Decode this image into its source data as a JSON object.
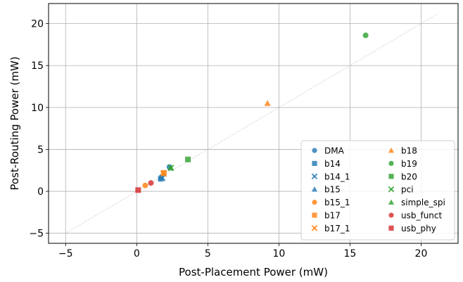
{
  "chart_data": {
    "type": "scatter",
    "title": "",
    "xlabel": "Post-Placement Power (mW)",
    "ylabel": "Post-Routing Power (mW)",
    "xlim": [
      -6.2,
      22.6
    ],
    "ylim": [
      -6.2,
      22.4
    ],
    "xticks": [
      -5,
      0,
      5,
      10,
      15,
      20
    ],
    "yticks": [
      -5,
      0,
      5,
      10,
      15,
      20
    ],
    "grid": true,
    "legend_position": "bottom-right",
    "legend_columns": 2,
    "reference_line": {
      "style": "dotted",
      "color": "#bbbbbb",
      "from": [
        -4.9,
        -4.9
      ],
      "to": [
        21.1,
        21.1
      ]
    },
    "series": [
      {
        "name": "DMA",
        "color": "#1f77b4",
        "marker": "circle",
        "points": [
          [
            2.3,
            2.9
          ]
        ]
      },
      {
        "name": "b14",
        "color": "#1f77b4",
        "marker": "square",
        "points": [
          [
            1.7,
            1.5
          ]
        ]
      },
      {
        "name": "b14_1",
        "color": "#1f77b4",
        "marker": "x",
        "points": [
          [
            1.8,
            1.6
          ]
        ]
      },
      {
        "name": "b15",
        "color": "#1f77b4",
        "marker": "triangle",
        "points": [
          [
            1.7,
            1.7
          ]
        ]
      },
      {
        "name": "b15_1",
        "color": "#ff7f0e",
        "marker": "circle",
        "points": [
          [
            0.6,
            0.7
          ]
        ]
      },
      {
        "name": "b17",
        "color": "#ff7f0e",
        "marker": "square",
        "points": [
          [
            1.9,
            2.2
          ]
        ]
      },
      {
        "name": "b17_1",
        "color": "#ff7f0e",
        "marker": "x",
        "points": [
          [
            1.9,
            2.1
          ]
        ]
      },
      {
        "name": "b18",
        "color": "#ff7f0e",
        "marker": "triangle",
        "points": [
          [
            9.2,
            10.5
          ]
        ]
      },
      {
        "name": "b19",
        "color": "#2ca02c",
        "marker": "circle",
        "points": [
          [
            16.1,
            18.6
          ]
        ]
      },
      {
        "name": "b20",
        "color": "#2ca02c",
        "marker": "square",
        "points": [
          [
            3.6,
            3.8
          ]
        ]
      },
      {
        "name": "pci",
        "color": "#2ca02c",
        "marker": "x",
        "points": [
          [
            2.4,
            2.8
          ]
        ]
      },
      {
        "name": "simple_spi",
        "color": "#2ca02c",
        "marker": "triangle",
        "points": [
          [
            2.4,
            2.8
          ]
        ]
      },
      {
        "name": "usb_funct",
        "color": "#d62728",
        "marker": "circle",
        "points": [
          [
            1.0,
            1.0
          ]
        ]
      },
      {
        "name": "usb_phy",
        "color": "#d62728",
        "marker": "square",
        "points": [
          [
            0.1,
            0.15
          ]
        ]
      }
    ]
  }
}
